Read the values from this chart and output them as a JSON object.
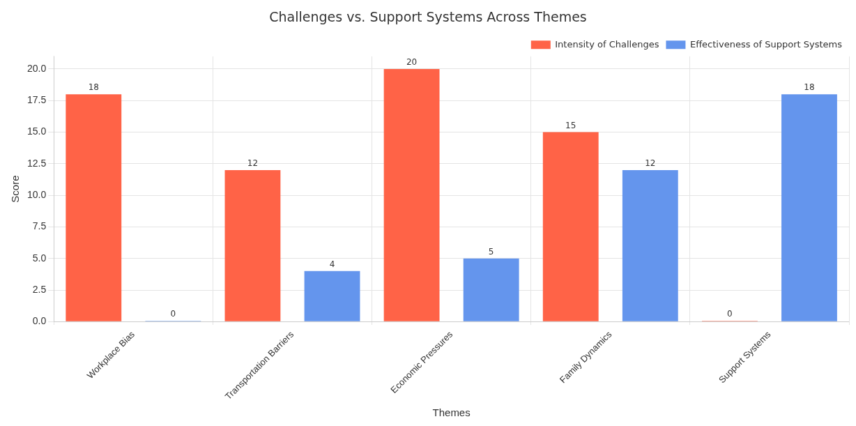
{
  "chart_data": {
    "type": "bar",
    "title": "Challenges vs. Support Systems Across Themes",
    "xlabel": "Themes",
    "ylabel": "Score",
    "categories": [
      "Workplace Bias",
      "Transportation Barriers",
      "Economic Pressures",
      "Family Dynamics",
      "Support Systems"
    ],
    "series": [
      {
        "name": "Intensity of Challenges",
        "color": "#ff6347",
        "values": [
          18,
          12,
          20,
          15,
          0
        ]
      },
      {
        "name": "Effectiveness of Support Systems",
        "color": "#6495ed",
        "values": [
          0,
          4,
          5,
          12,
          18
        ]
      }
    ],
    "ylim": [
      0,
      21
    ],
    "yticks": [
      {
        "value": 0,
        "label": "0.0"
      },
      {
        "value": 2.5,
        "label": "2.5"
      },
      {
        "value": 5,
        "label": "5.0"
      },
      {
        "value": 7.5,
        "label": "7.5"
      },
      {
        "value": 10,
        "label": "10.0"
      },
      {
        "value": 12.5,
        "label": "12.5"
      },
      {
        "value": 15,
        "label": "15.0"
      },
      {
        "value": 17.5,
        "label": "17.5"
      },
      {
        "value": 20,
        "label": "20.0"
      }
    ],
    "grid": true,
    "legend": "top right",
    "data_labels": true
  }
}
